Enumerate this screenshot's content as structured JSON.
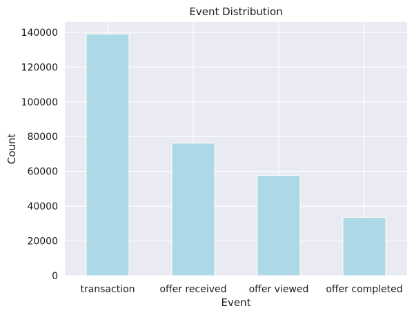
{
  "chart_data": {
    "type": "bar",
    "title": "Event Distribution",
    "xlabel": "Event",
    "ylabel": "Count",
    "categories": [
      "transaction",
      "offer received",
      "offer viewed",
      "offer completed"
    ],
    "values": [
      138953,
      76277,
      57725,
      33579
    ],
    "ylim": [
      0,
      145897
    ],
    "yticks": [
      0,
      20000,
      40000,
      60000,
      80000,
      100000,
      120000,
      140000
    ],
    "grid": true,
    "legend": "none",
    "colors": {
      "bar": "#add8e6",
      "plot_background": "#eaeaf2",
      "grid": "#ffffff",
      "text": "#1a1a1a"
    }
  }
}
